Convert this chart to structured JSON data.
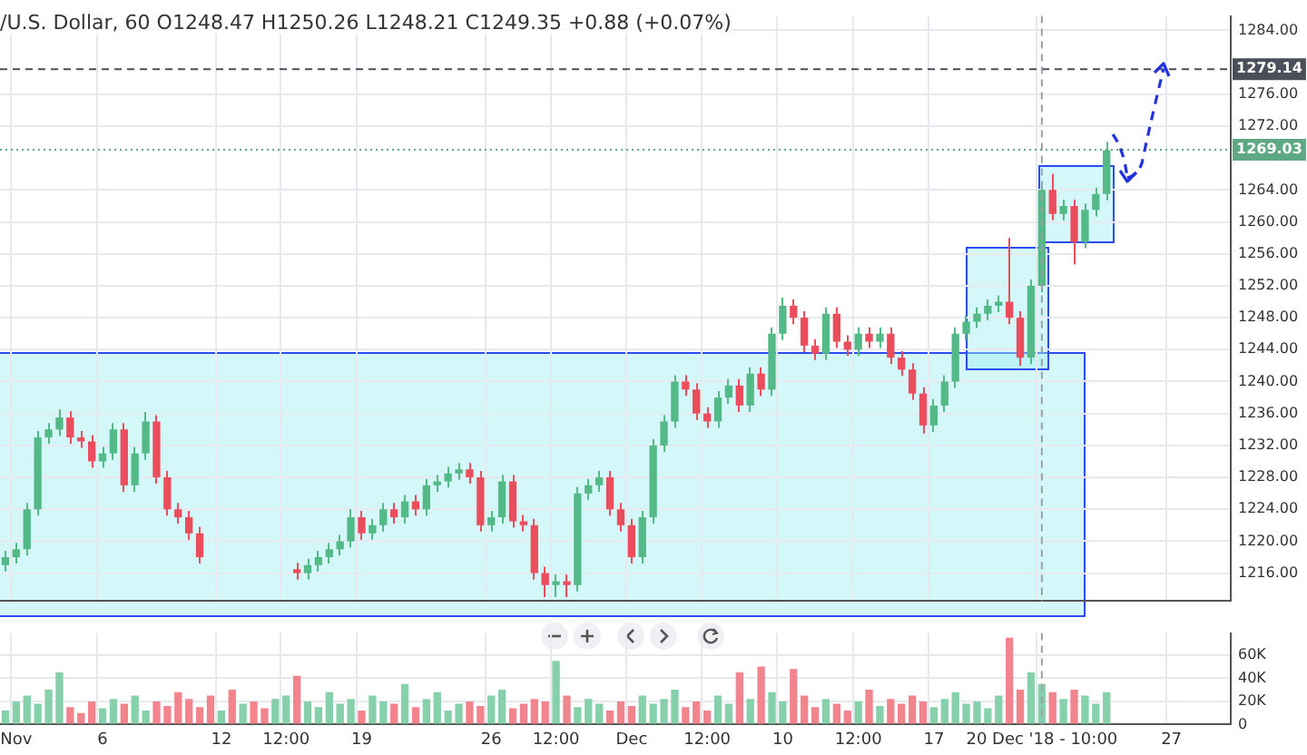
{
  "chart_data": [
    {
      "type": "candlestick",
      "title": "/U.S. Dollar, 60 O1248.47 H1250.26 L1248.21 C1249.35 +0.88 (+0.07%)",
      "categories": [
        null,
        "Nov",
        null,
        null,
        null,
        null,
        null,
        null,
        null,
        "6",
        null,
        null,
        null,
        null,
        null,
        null,
        null,
        null,
        null,
        null,
        "12",
        null,
        null,
        null,
        null,
        null,
        "12:00",
        null,
        null,
        null,
        null,
        null,
        null,
        "19",
        null,
        null,
        null,
        null,
        null,
        null,
        null,
        null,
        null,
        null,
        null,
        "26",
        null,
        null,
        null,
        null,
        null,
        "12:00",
        null,
        null,
        null,
        null,
        null,
        null,
        "Dec",
        null,
        null,
        null,
        null,
        null,
        null,
        "12:00",
        null,
        null,
        null,
        null,
        null,
        null,
        "10",
        null,
        null,
        null,
        null,
        null,
        null,
        "12:00",
        null,
        null,
        null,
        null,
        null,
        null,
        "17",
        null,
        null,
        null,
        null,
        null,
        null,
        null,
        null,
        null,
        "20 Dec '18 - 10:00",
        null,
        null,
        null,
        null,
        null,
        null,
        null,
        null,
        null,
        null,
        null,
        "27",
        null,
        null,
        null,
        null,
        null
      ],
      "ohlc": [
        [
          1217,
          1218.8,
          1216.2,
          1218
        ],
        [
          1218,
          1219.8,
          1217.2,
          1219
        ],
        [
          1219,
          1224.8,
          1218.2,
          1224
        ],
        [
          1224,
          1233.8,
          1223.2,
          1233
        ],
        [
          1233,
          1234.8,
          1232.2,
          1234
        ],
        [
          1234,
          1236.5,
          1233.2,
          1235.5
        ],
        [
          1235.5,
          1236.3,
          1232.2,
          1233
        ],
        [
          1233,
          1233.8,
          1231.7,
          1232.5
        ],
        [
          1232.5,
          1233.3,
          1229.2,
          1230
        ],
        [
          1230,
          1231.8,
          1229.2,
          1231
        ],
        [
          1231,
          1234.8,
          1230.2,
          1234
        ],
        [
          1234,
          1234.8,
          1226.2,
          1227
        ],
        [
          1227,
          1231.8,
          1226.2,
          1231
        ],
        [
          1231,
          1236.2,
          1230.2,
          1235
        ],
        [
          1235,
          1235.8,
          1227.2,
          1228
        ],
        [
          1228,
          1228.8,
          1223.2,
          1224
        ],
        [
          1224,
          1224.8,
          1222.2,
          1223
        ],
        [
          1223,
          1223.8,
          1220.2,
          1221
        ],
        [
          1221,
          1221.8,
          1217.2,
          1218
        ],
        null,
        null,
        null,
        null,
        null,
        null,
        null,
        null,
        [
          1216.5,
          1217.3,
          1215.2,
          1216
        ],
        [
          1216,
          1217.8,
          1215.2,
          1217
        ],
        [
          1217,
          1218.8,
          1216.2,
          1218
        ],
        [
          1218,
          1219.8,
          1217.2,
          1219
        ],
        [
          1219,
          1220.8,
          1218.2,
          1220
        ],
        [
          1220,
          1224,
          1219.2,
          1223
        ],
        [
          1223,
          1223.8,
          1220.2,
          1221
        ],
        [
          1221,
          1222.8,
          1220.2,
          1222
        ],
        [
          1222,
          1224.8,
          1221.2,
          1224
        ],
        [
          1224,
          1224.8,
          1222.2,
          1223
        ],
        [
          1223,
          1225.8,
          1222.2,
          1225
        ],
        [
          1225,
          1225.8,
          1223.2,
          1224
        ],
        [
          1224,
          1227.8,
          1223.2,
          1227
        ],
        [
          1227,
          1228.3,
          1226.2,
          1227.5
        ],
        [
          1227.5,
          1229.3,
          1226.7,
          1228.5
        ],
        [
          1228.5,
          1229.8,
          1227.7,
          1229
        ],
        [
          1229,
          1229.8,
          1227.2,
          1228
        ],
        [
          1228,
          1228.8,
          1221.2,
          1222
        ],
        [
          1222,
          1223.8,
          1221.2,
          1223
        ],
        [
          1223,
          1228.3,
          1222.2,
          1227.5
        ],
        [
          1227.5,
          1228.3,
          1221.7,
          1222.5
        ],
        [
          1222.5,
          1223.3,
          1221.2,
          1222
        ],
        [
          1222,
          1222.8,
          1215.2,
          1216
        ],
        [
          1216,
          1216.8,
          1213,
          1214.5
        ],
        [
          1214.5,
          1215.8,
          1213,
          1215
        ],
        [
          1215,
          1215.8,
          1213,
          1214.5
        ],
        [
          1214.5,
          1226.8,
          1213.7,
          1226
        ],
        [
          1226,
          1227.8,
          1225.2,
          1227
        ],
        [
          1227,
          1228.8,
          1226.2,
          1228
        ],
        [
          1228,
          1228.8,
          1223.2,
          1224
        ],
        [
          1224,
          1224.8,
          1221.2,
          1222
        ],
        [
          1222,
          1222.8,
          1217.2,
          1218
        ],
        [
          1218,
          1223.8,
          1217.2,
          1223
        ],
        [
          1223,
          1232.8,
          1222.2,
          1232
        ],
        [
          1232,
          1235.8,
          1231.2,
          1235
        ],
        [
          1235,
          1240.8,
          1234.2,
          1240
        ],
        [
          1240,
          1240.8,
          1238.2,
          1239
        ],
        [
          1239,
          1239.8,
          1235.2,
          1236
        ],
        [
          1236,
          1236.8,
          1234.2,
          1235
        ],
        [
          1235,
          1238.8,
          1234.2,
          1238
        ],
        [
          1238,
          1240.3,
          1237.2,
          1239.5
        ],
        [
          1239.5,
          1240.3,
          1236.2,
          1237
        ],
        [
          1237,
          1241.8,
          1236.2,
          1241
        ],
        [
          1241,
          1241.8,
          1238.2,
          1239
        ],
        [
          1239,
          1246.8,
          1238.2,
          1246
        ],
        [
          1246,
          1250.5,
          1245.2,
          1249.5
        ],
        [
          1249.5,
          1250.3,
          1247.2,
          1248
        ],
        [
          1248,
          1248.8,
          1243.7,
          1244.5
        ],
        [
          1244.5,
          1245.3,
          1242.7,
          1243.5
        ],
        [
          1243.5,
          1249.3,
          1242.7,
          1248.5
        ],
        [
          1248.5,
          1249.3,
          1244.2,
          1245
        ],
        [
          1245,
          1245.8,
          1243.2,
          1244
        ],
        [
          1244,
          1246.8,
          1243.2,
          1246
        ],
        [
          1246,
          1246.8,
          1244.2,
          1245
        ],
        [
          1245,
          1246.8,
          1244.2,
          1246
        ],
        [
          1246,
          1246.8,
          1242.2,
          1243
        ],
        [
          1243,
          1243.8,
          1240.7,
          1241.5
        ],
        [
          1241.5,
          1242.3,
          1237.7,
          1238.5
        ],
        [
          1238.5,
          1239.3,
          1233.5,
          1234.5
        ],
        [
          1234.5,
          1237.8,
          1233.7,
          1237
        ],
        [
          1237,
          1240.8,
          1236.2,
          1240
        ],
        [
          1240,
          1246.8,
          1239.2,
          1246
        ],
        [
          1246,
          1248.3,
          1245.2,
          1247.5
        ],
        [
          1247.5,
          1249.3,
          1246.7,
          1248.5
        ],
        [
          1248.5,
          1250.3,
          1247.7,
          1249.5
        ],
        [
          1249.5,
          1250.8,
          1248.7,
          1250
        ],
        [
          1250,
          1258,
          1247.2,
          1248
        ],
        [
          1248,
          1248.8,
          1242,
          1243
        ],
        [
          1243,
          1252.8,
          1242.2,
          1252
        ],
        [
          1252,
          1264.8,
          1251.2,
          1264
        ],
        [
          1264,
          1266,
          1260.2,
          1261
        ],
        [
          1261,
          1262.8,
          1260.2,
          1262
        ],
        [
          1262,
          1262.8,
          1254.7,
          1257.5
        ],
        [
          1257.5,
          1262.3,
          1256.7,
          1261.5
        ],
        [
          1261.5,
          1264.3,
          1260.7,
          1263.5
        ],
        [
          1263.5,
          1270,
          1262.7,
          1269
        ],
        null,
        null,
        null,
        null,
        null,
        null,
        null,
        null,
        null,
        null,
        null
      ],
      "colors": [
        "#53b987",
        "#53b987",
        "#53b987",
        "#53b987",
        "#53b987",
        "#53b987",
        "#eb4d5c",
        "#eb4d5c",
        "#eb4d5c",
        "#53b987",
        "#53b987",
        "#eb4d5c",
        "#53b987",
        "#53b987",
        "#eb4d5c",
        "#eb4d5c",
        "#eb4d5c",
        "#eb4d5c",
        "#eb4d5c",
        null,
        null,
        null,
        null,
        null,
        null,
        null,
        null,
        "#eb4d5c",
        "#53b987",
        "#53b987",
        "#53b987",
        "#53b987",
        "#53b987",
        "#eb4d5c",
        "#53b987",
        "#53b987",
        "#eb4d5c",
        "#53b987",
        "#eb4d5c",
        "#53b987",
        "#53b987",
        "#53b987",
        "#53b987",
        "#eb4d5c",
        "#eb4d5c",
        "#53b987",
        "#53b987",
        "#eb4d5c",
        "#eb4d5c",
        "#eb4d5c",
        "#eb4d5c",
        "#53b987",
        "#eb4d5c",
        "#53b987",
        "#53b987",
        "#53b987",
        "#eb4d5c",
        "#eb4d5c",
        "#eb4d5c",
        "#53b987",
        "#53b987",
        "#53b987",
        "#53b987",
        "#eb4d5c",
        "#eb4d5c",
        "#eb4d5c",
        "#53b987",
        "#53b987",
        "#eb4d5c",
        "#53b987",
        "#eb4d5c",
        "#53b987",
        "#53b987",
        "#eb4d5c",
        "#eb4d5c",
        "#eb4d5c",
        "#53b987",
        "#eb4d5c",
        "#eb4d5c",
        "#53b987",
        "#eb4d5c",
        "#53b987",
        "#eb4d5c",
        "#eb4d5c",
        "#eb4d5c",
        "#eb4d5c",
        "#53b987",
        "#53b987",
        "#53b987",
        "#53b987",
        "#53b987",
        "#53b987",
        "#53b987",
        "#eb4d5c",
        "#eb4d5c",
        "#53b987",
        "#53b987",
        "#eb4d5c",
        "#53b987",
        "#eb4d5c",
        "#53b987",
        "#53b987",
        "#53b987",
        null,
        null,
        null,
        null,
        null,
        null,
        null,
        null,
        null,
        null,
        null
      ],
      "ylim": [
        1212.5,
        1285.8
      ],
      "yticks": [
        {
          "value": 1216,
          "label": "1216.00"
        },
        {
          "value": 1220,
          "label": "1220.00"
        },
        {
          "value": 1224,
          "label": "1224.00"
        },
        {
          "value": 1228,
          "label": "1228.00"
        },
        {
          "value": 1232,
          "label": "1232.00"
        },
        {
          "value": 1236,
          "label": "1236.00"
        },
        {
          "value": 1240,
          "label": "1240.00"
        },
        {
          "value": 1244,
          "label": "1244.00"
        },
        {
          "value": 1248,
          "label": "1248.00"
        },
        {
          "value": 1252,
          "label": "1252.00"
        },
        {
          "value": 1256,
          "label": "1256.00"
        },
        {
          "value": 1260,
          "label": "1260.00"
        },
        {
          "value": 1264,
          "label": "1264.00"
        },
        {
          "value": 1272,
          "label": "1272.00"
        },
        {
          "value": 1276,
          "label": "1276.00"
        },
        {
          "value": 1284,
          "label": "1284.00"
        }
      ],
      "ref_lines": [
        {
          "axis": "y",
          "value": 1279.14,
          "label": "1279.14",
          "color": "#4a4f5a",
          "line_style": "dashed"
        },
        {
          "axis": "y",
          "value": 1269.03,
          "label": "1269.03",
          "color": "#5fa884",
          "line_style": "dotted"
        },
        {
          "axis": "x",
          "value": "20 Dec '18 - 10:00",
          "color": "#9aa0a8",
          "line_style": "dashed"
        }
      ],
      "grid": true,
      "legend": false,
      "tick_labels": "y"
    },
    {
      "type": "bar",
      "categories": [
        null,
        "Nov",
        null,
        null,
        null,
        null,
        null,
        null,
        null,
        "6",
        null,
        null,
        null,
        null,
        null,
        null,
        null,
        null,
        null,
        null,
        "12",
        null,
        null,
        null,
        null,
        null,
        "12:00",
        null,
        null,
        null,
        null,
        null,
        null,
        "19",
        null,
        null,
        null,
        null,
        null,
        null,
        null,
        null,
        null,
        null,
        null,
        "26",
        null,
        null,
        null,
        null,
        null,
        "12:00",
        null,
        null,
        null,
        null,
        null,
        null,
        "Dec",
        null,
        null,
        null,
        null,
        null,
        null,
        "12:00",
        null,
        null,
        null,
        null,
        null,
        null,
        "10",
        null,
        null,
        null,
        null,
        null,
        null,
        "12:00",
        null,
        null,
        null,
        null,
        null,
        null,
        "17",
        null,
        null,
        null,
        null,
        null,
        null,
        null,
        null,
        null,
        "20 Dec '18 - 10:00",
        null,
        null,
        null,
        null,
        null,
        null,
        null,
        null,
        null,
        null,
        null,
        "27",
        null,
        null,
        null,
        null,
        null
      ],
      "values": [
        12000,
        20000,
        25000,
        18000,
        30000,
        45000,
        15000,
        10000,
        20000,
        14000,
        22000,
        18000,
        25000,
        12000,
        20000,
        16000,
        28000,
        22000,
        15000,
        25000,
        12000,
        30000,
        18000,
        20000,
        14000,
        22000,
        25000,
        42000,
        20000,
        15000,
        28000,
        18000,
        22000,
        12000,
        25000,
        20000,
        18000,
        35000,
        15000,
        22000,
        28000,
        12000,
        18000,
        20000,
        16000,
        25000,
        30000,
        14000,
        18000,
        22000,
        20000,
        55000,
        25000,
        15000,
        22000,
        18000,
        12000,
        20000,
        16000,
        25000,
        18000,
        22000,
        30000,
        15000,
        20000,
        12000,
        25000,
        18000,
        45000,
        22000,
        50000,
        28000,
        20000,
        48000,
        25000,
        15000,
        22000,
        18000,
        12000,
        20000,
        30000,
        16000,
        22000,
        18000,
        25000,
        20000,
        15000,
        22000,
        28000,
        18000,
        20000,
        14000,
        25000,
        75000,
        30000,
        45000,
        35000,
        28000,
        22000,
        30000,
        25000,
        18000,
        28000,
        null,
        null,
        null,
        null,
        null,
        null,
        null,
        null,
        null,
        null,
        null
      ],
      "colors": [
        "#86d1ab",
        "#86d1ab",
        "#86d1ab",
        "#86d1ab",
        "#86d1ab",
        "#86d1ab",
        "#f2848e",
        "#f2848e",
        "#f2848e",
        "#86d1ab",
        "#86d1ab",
        "#f2848e",
        "#86d1ab",
        "#86d1ab",
        "#f2848e",
        "#f2848e",
        "#f2848e",
        "#f2848e",
        "#f2848e",
        "#f2848e",
        "#86d1ab",
        "#f2848e",
        "#86d1ab",
        "#f2848e",
        "#f2848e",
        "#86d1ab",
        "#86d1ab",
        "#f2848e",
        "#86d1ab",
        "#86d1ab",
        "#86d1ab",
        "#86d1ab",
        "#86d1ab",
        "#f2848e",
        "#86d1ab",
        "#86d1ab",
        "#f2848e",
        "#86d1ab",
        "#f2848e",
        "#86d1ab",
        "#86d1ab",
        "#86d1ab",
        "#86d1ab",
        "#f2848e",
        "#f2848e",
        "#86d1ab",
        "#86d1ab",
        "#f2848e",
        "#f2848e",
        "#f2848e",
        "#f2848e",
        "#86d1ab",
        "#f2848e",
        "#86d1ab",
        "#86d1ab",
        "#86d1ab",
        "#f2848e",
        "#f2848e",
        "#f2848e",
        "#86d1ab",
        "#86d1ab",
        "#86d1ab",
        "#86d1ab",
        "#f2848e",
        "#f2848e",
        "#f2848e",
        "#86d1ab",
        "#86d1ab",
        "#f2848e",
        "#86d1ab",
        "#f2848e",
        "#86d1ab",
        "#86d1ab",
        "#f2848e",
        "#f2848e",
        "#f2848e",
        "#86d1ab",
        "#f2848e",
        "#f2848e",
        "#86d1ab",
        "#f2848e",
        "#86d1ab",
        "#f2848e",
        "#f2848e",
        "#f2848e",
        "#f2848e",
        "#86d1ab",
        "#86d1ab",
        "#86d1ab",
        "#86d1ab",
        "#86d1ab",
        "#86d1ab",
        "#86d1ab",
        "#f2848e",
        "#f2848e",
        "#86d1ab",
        "#86d1ab",
        "#f2848e",
        "#86d1ab",
        "#f2848e",
        "#86d1ab",
        "#86d1ab",
        "#86d1ab",
        null,
        null,
        null,
        null,
        null,
        null,
        null,
        null,
        null,
        null,
        null
      ],
      "ylim": [
        0,
        79000
      ],
      "yticks": [
        {
          "value": 0,
          "label": "0"
        },
        {
          "value": 20000,
          "label": "20K"
        },
        {
          "value": 40000,
          "label": "40K"
        },
        {
          "value": 60000,
          "label": "60K"
        }
      ],
      "ref_lines": [
        {
          "axis": "x",
          "value": "20 Dec '18 - 10:00",
          "color": "#9aa0a8",
          "line_style": "dashed"
        }
      ],
      "grid": true,
      "legend": false
    }
  ]
}
